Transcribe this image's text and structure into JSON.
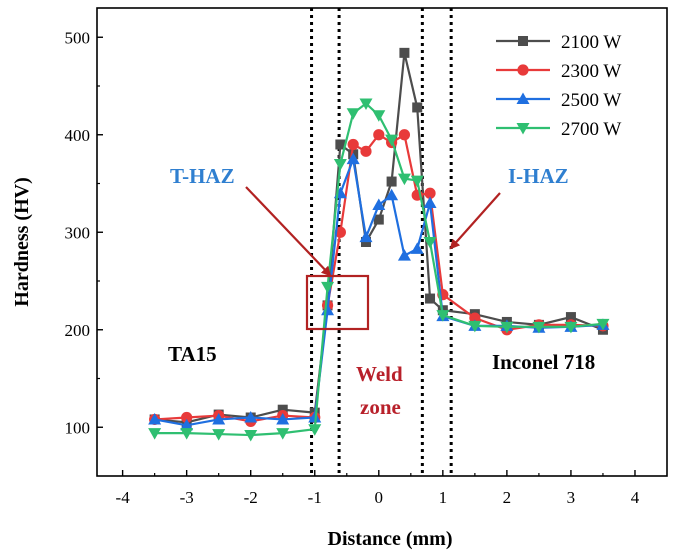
{
  "chart_data": {
    "type": "line",
    "xlabel": "Distance (mm)",
    "ylabel": "Hardness (HV)",
    "xlim": [
      -4.4,
      4.5
    ],
    "ylim": [
      50,
      530
    ],
    "xticks": [
      -4,
      -3,
      -2,
      -1,
      0,
      1,
      2,
      3,
      4
    ],
    "yticks": [
      100,
      200,
      300,
      400,
      500
    ],
    "legend_position": "top-right",
    "series": [
      {
        "name": "2100 W",
        "color": "#4d4d4d",
        "marker": "square",
        "x": [
          -3.5,
          -3.0,
          -2.5,
          -2.0,
          -1.5,
          -1.0,
          -0.8,
          -0.6,
          -0.4,
          -0.2,
          0.0,
          0.2,
          0.4,
          0.6,
          0.8,
          1.0,
          1.5,
          2.0,
          2.5,
          3.0,
          3.5
        ],
        "y": [
          108,
          105,
          113,
          110,
          118,
          115,
          225,
          390,
          380,
          290,
          313,
          352,
          484,
          428,
          232,
          220,
          216,
          208,
          205,
          213,
          200
        ]
      },
      {
        "name": "2300 W",
        "color": "#e83a3a",
        "marker": "circle",
        "x": [
          -3.5,
          -3.0,
          -2.5,
          -2.0,
          -1.5,
          -1.0,
          -0.8,
          -0.6,
          -0.4,
          -0.2,
          0.0,
          0.2,
          0.4,
          0.6,
          0.8,
          1.0,
          1.5,
          2.0,
          2.5,
          3.0,
          3.5
        ],
        "y": [
          108,
          110,
          112,
          106,
          112,
          110,
          225,
          300,
          390,
          383,
          400,
          392,
          400,
          338,
          340,
          236,
          212,
          200,
          205,
          205,
          204
        ]
      },
      {
        "name": "2500 W",
        "color": "#1f6fe0",
        "marker": "triangle-up",
        "x": [
          -3.5,
          -3.0,
          -2.5,
          -2.0,
          -1.5,
          -1.0,
          -0.8,
          -0.6,
          -0.4,
          -0.2,
          0.0,
          0.2,
          0.4,
          0.6,
          0.8,
          1.0,
          1.5,
          2.0,
          2.5,
          3.0,
          3.5
        ],
        "y": [
          108,
          102,
          108,
          110,
          108,
          110,
          220,
          340,
          375,
          295,
          328,
          338,
          276,
          283,
          330,
          214,
          204,
          204,
          202,
          203,
          205
        ]
      },
      {
        "name": "2700 W",
        "color": "#2fbf71",
        "marker": "triangle-down",
        "x": [
          -3.5,
          -3.0,
          -2.5,
          -2.0,
          -1.5,
          -1.0,
          -0.8,
          -0.6,
          -0.4,
          -0.2,
          0.0,
          0.2,
          0.4,
          0.6,
          0.8,
          1.0,
          1.5,
          2.0,
          2.5,
          3.0,
          3.5
        ],
        "y": [
          94,
          94,
          93,
          92,
          94,
          98,
          244,
          370,
          422,
          432,
          420,
          395,
          355,
          353,
          290,
          215,
          204,
          203,
          203,
          203,
          206
        ]
      }
    ],
    "vlines": [
      -1.05,
      -0.62,
      0.68,
      1.13
    ],
    "annotations": {
      "t_haz": {
        "text": "T-HAZ",
        "color": "#2f7fd0"
      },
      "i_haz": {
        "text": "I-HAZ",
        "color": "#2f7fd0"
      },
      "ta15": {
        "text": "TA15",
        "color": "#000000"
      },
      "weld_line1": {
        "text": "Weld",
        "color": "#b8202a"
      },
      "weld_line2": {
        "text": "zone",
        "color": "#b8202a"
      },
      "inconel": {
        "text": "Inconel 718",
        "color": "#000000"
      },
      "arrow_color": "#b22222",
      "box_color": "#b22222"
    }
  }
}
